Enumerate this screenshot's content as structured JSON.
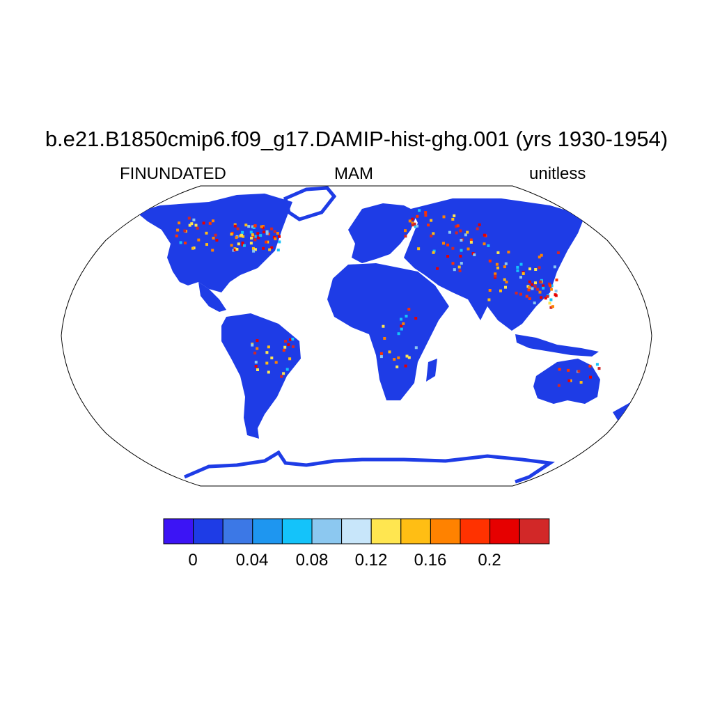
{
  "figure": {
    "title": "b.e21.B1850cmip6.f09_g17.DAMIP-hist-ghg.001 (yrs 1930-1954)",
    "variable": "FINUNDATED",
    "season": "MAM",
    "units": "unitless"
  },
  "colorbar": {
    "colors": [
      "#3c14f5",
      "#1e3ce6",
      "#3c78e6",
      "#1e96f0",
      "#14c3fa",
      "#8cc8f0",
      "#c8e6fa",
      "#ffe650",
      "#ffbe14",
      "#ff8200",
      "#ff3200",
      "#e60000",
      "#d22828"
    ],
    "tick_labels": [
      "0",
      "0.04",
      "0.08",
      "0.12",
      "0.16",
      "0.2"
    ]
  },
  "map": {
    "projection": "Robinson",
    "land_base_color": "#1e3ce6",
    "ocean_color": "#ffffff"
  }
}
